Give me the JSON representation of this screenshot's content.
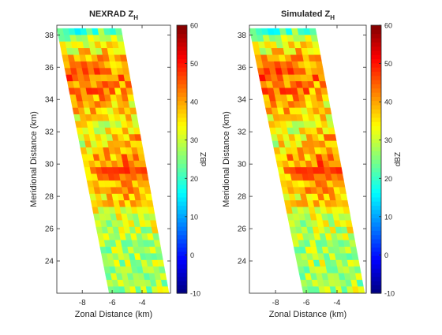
{
  "figure": {
    "background": "#ffffff"
  },
  "chart_data": [
    {
      "type": "heatmap",
      "title_main": "NEXRAD Z",
      "title_sub": "H",
      "xlabel": "Zonal Distance (km)",
      "ylabel": "Meridional Distance (km)",
      "xlim": [
        -9.7,
        -2.1
      ],
      "ylim": [
        22,
        38.6
      ],
      "xticks": [
        -8,
        -6,
        -4
      ],
      "yticks": [
        24,
        26,
        28,
        30,
        32,
        34,
        36,
        38
      ],
      "colorbar": {
        "label": "dBZ",
        "range": [
          -10,
          60
        ],
        "ticks": [
          -10,
          0,
          10,
          20,
          30,
          40,
          50,
          60
        ],
        "colormap": "jet"
      },
      "swath": {
        "top_y": 38.4,
        "bottom_y": 22.0,
        "top_left_x": -9.7,
        "top_right_x": -5.4,
        "bottom_left_x": -6.2,
        "bottom_right_x": -2.2
      },
      "reflectivity_profile_dBZ": [
        {
          "y": 38.4,
          "west": 18,
          "east": 22
        },
        {
          "y": 37.5,
          "west": 28,
          "east": 33
        },
        {
          "y": 36.5,
          "west": 38,
          "east": 40
        },
        {
          "y": 35.5,
          "west": 44,
          "east": 42
        },
        {
          "y": 34.5,
          "west": 45,
          "east": 38
        },
        {
          "y": 33.5,
          "west": 40,
          "east": 34
        },
        {
          "y": 32.5,
          "west": 32,
          "east": 34
        },
        {
          "y": 31.5,
          "west": 30,
          "east": 40
        },
        {
          "y": 30.5,
          "west": 36,
          "east": 43
        },
        {
          "y": 29.5,
          "west": 41,
          "east": 44
        },
        {
          "y": 28.5,
          "west": 40,
          "east": 42
        },
        {
          "y": 27.5,
          "west": 34,
          "east": 36
        },
        {
          "y": 26.5,
          "west": 30,
          "east": 32
        },
        {
          "y": 25.5,
          "west": 28,
          "east": 30
        },
        {
          "y": 24.5,
          "west": 28,
          "east": 30
        },
        {
          "y": 23.5,
          "west": 28,
          "east": 29
        },
        {
          "y": 22.5,
          "west": 27,
          "east": 28
        }
      ]
    },
    {
      "type": "heatmap",
      "title_main": "Simulated Z",
      "title_sub": "H",
      "xlabel": "Zonal Distance (km)",
      "ylabel": "Meridional Distance (km)",
      "xlim": [
        -9.7,
        -2.1
      ],
      "ylim": [
        22,
        38.6
      ],
      "xticks": [
        -8,
        -6,
        -4
      ],
      "yticks": [
        24,
        26,
        28,
        30,
        32,
        34,
        36,
        38
      ],
      "colorbar": {
        "label": "dBZ",
        "range": [
          -10,
          60
        ],
        "ticks": [
          -10,
          0,
          10,
          20,
          30,
          40,
          50,
          60
        ],
        "colormap": "jet"
      },
      "swath": {
        "top_y": 38.4,
        "bottom_y": 22.0,
        "top_left_x": -9.7,
        "top_right_x": -5.4,
        "bottom_left_x": -6.2,
        "bottom_right_x": -2.2
      },
      "reflectivity_profile_dBZ": [
        {
          "y": 38.4,
          "west": 17,
          "east": 22
        },
        {
          "y": 37.5,
          "west": 28,
          "east": 33
        },
        {
          "y": 36.5,
          "west": 39,
          "east": 41
        },
        {
          "y": 35.5,
          "west": 45,
          "east": 42
        },
        {
          "y": 34.5,
          "west": 46,
          "east": 38
        },
        {
          "y": 33.5,
          "west": 40,
          "east": 34
        },
        {
          "y": 32.5,
          "west": 32,
          "east": 34
        },
        {
          "y": 31.5,
          "west": 30,
          "east": 41
        },
        {
          "y": 30.5,
          "west": 36,
          "east": 44
        },
        {
          "y": 29.5,
          "west": 41,
          "east": 44
        },
        {
          "y": 28.5,
          "west": 40,
          "east": 42
        },
        {
          "y": 27.5,
          "west": 34,
          "east": 36
        },
        {
          "y": 26.5,
          "west": 30,
          "east": 32
        },
        {
          "y": 25.5,
          "west": 28,
          "east": 30
        },
        {
          "y": 24.5,
          "west": 28,
          "east": 30
        },
        {
          "y": 23.5,
          "west": 28,
          "east": 29
        },
        {
          "y": 22.5,
          "west": 27,
          "east": 28
        }
      ]
    }
  ]
}
